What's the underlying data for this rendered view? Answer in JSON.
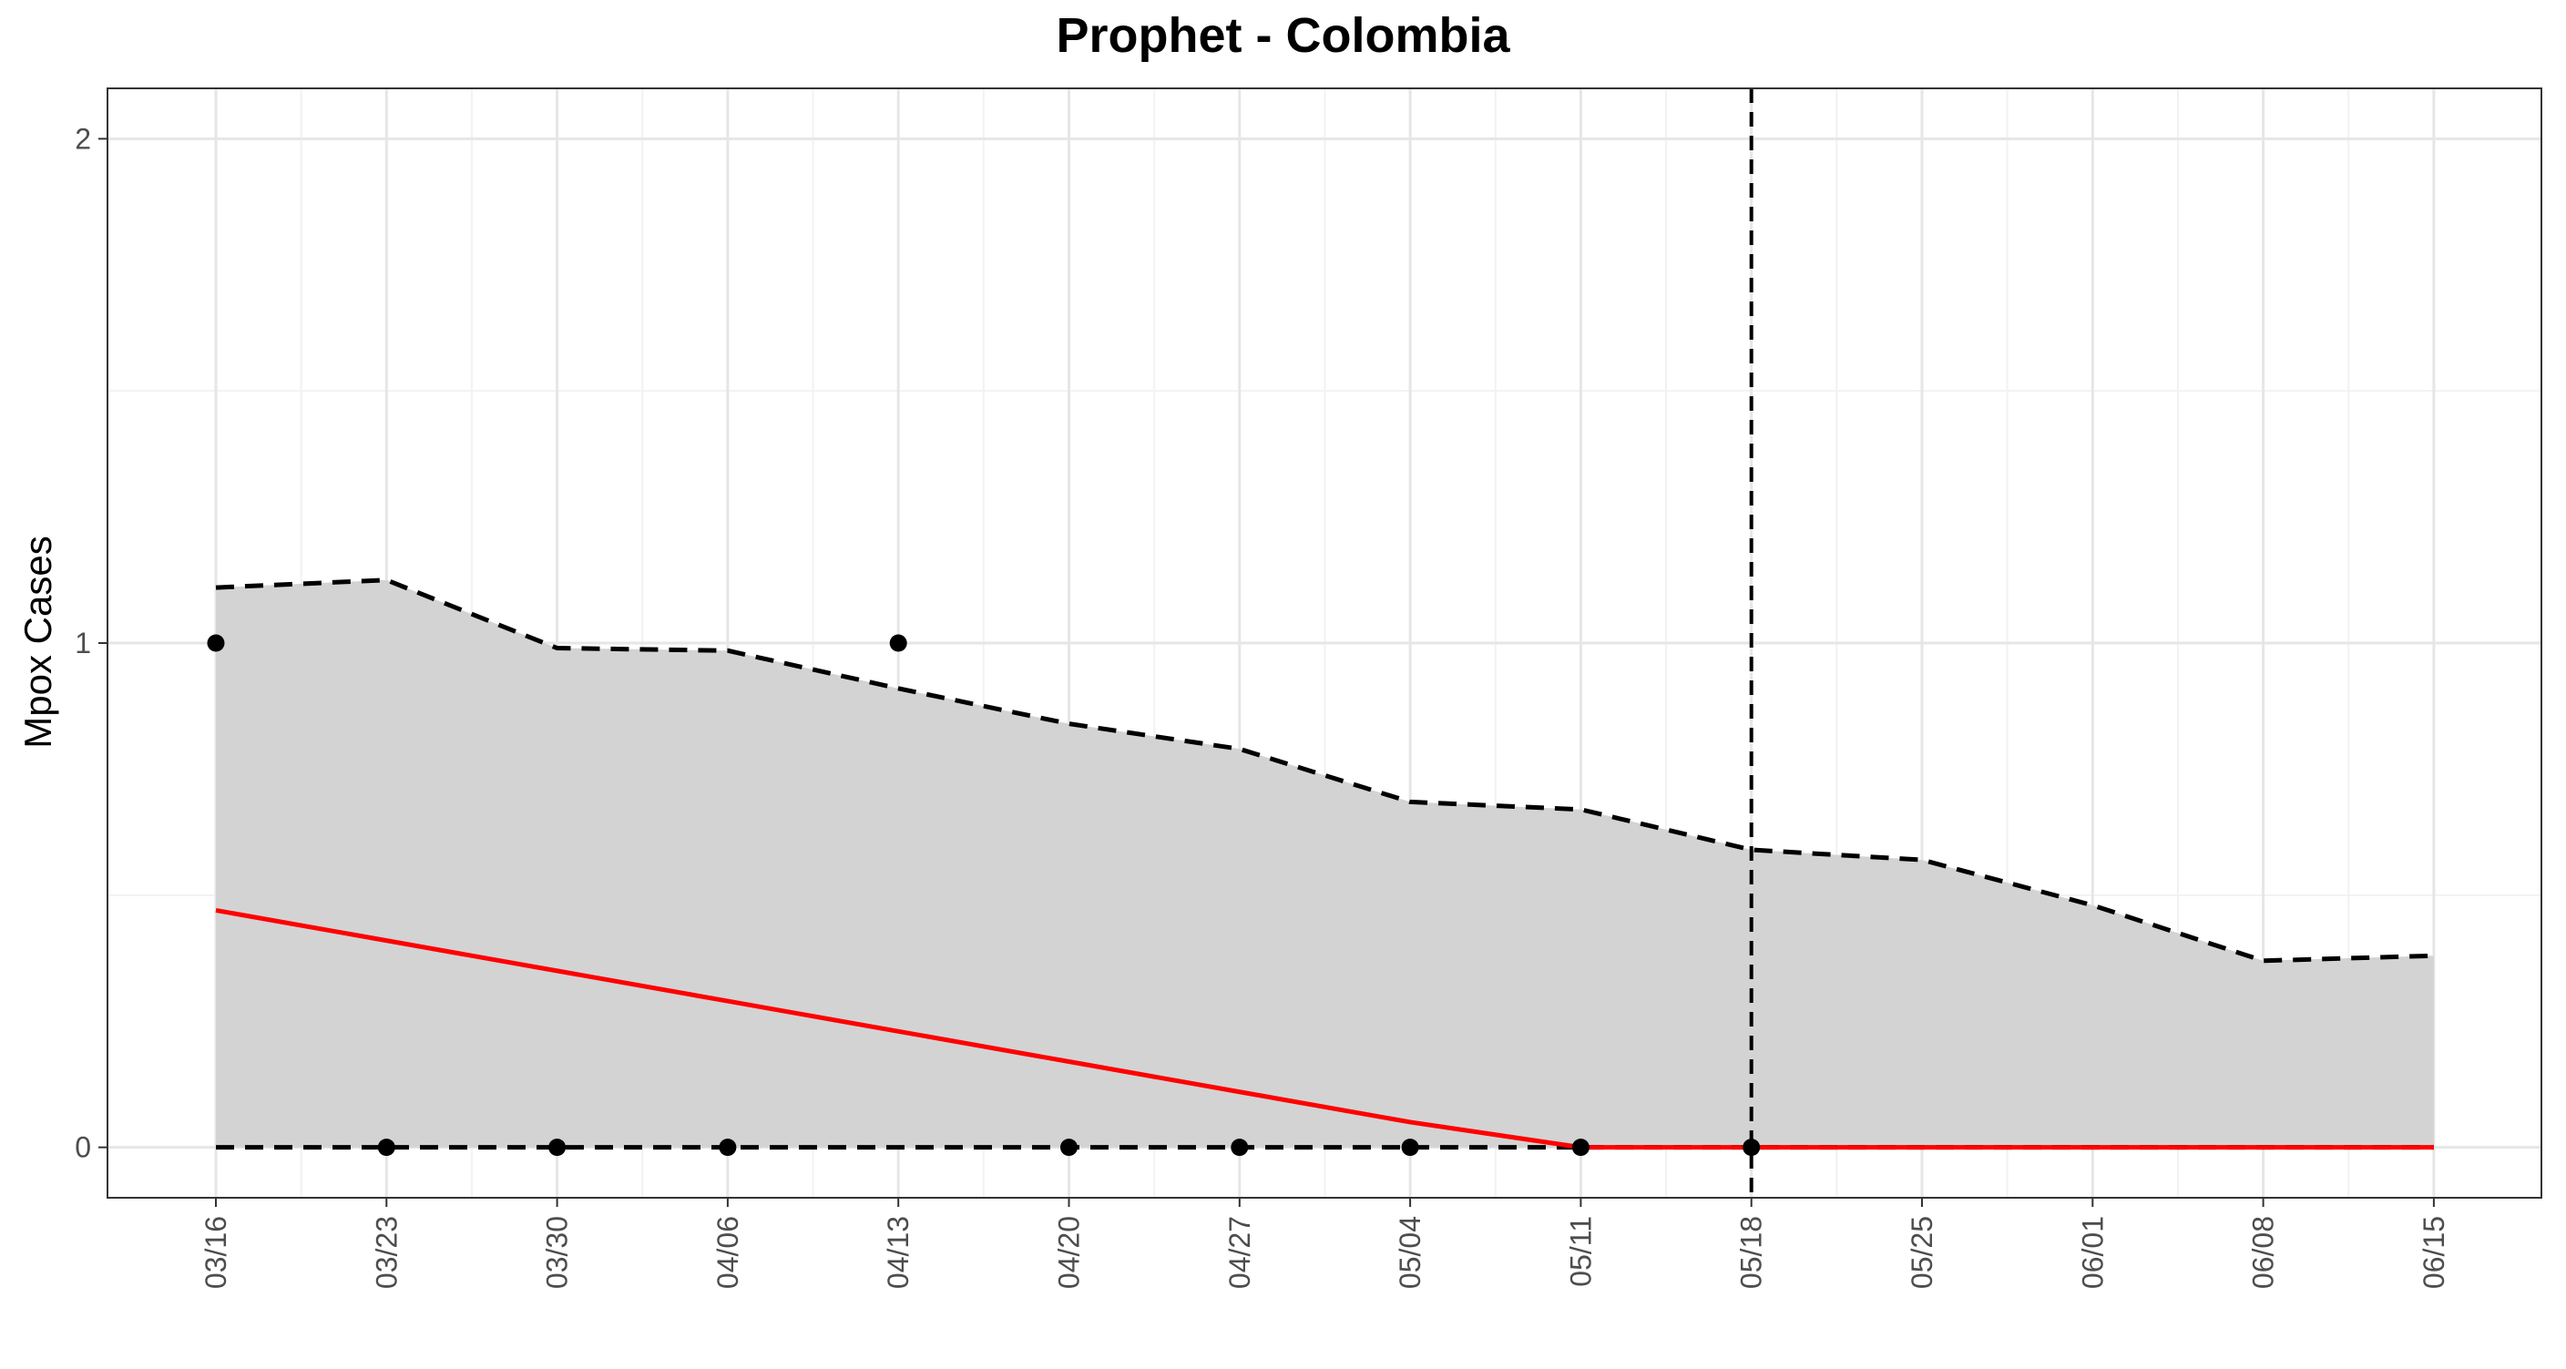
{
  "chart_data": {
    "type": "line",
    "title": "Prophet - Colombia",
    "xlabel": "",
    "ylabel": "Mpox Cases",
    "x_tick_labels": [
      "03/16",
      "03/23",
      "03/30",
      "04/06",
      "04/13",
      "04/20",
      "04/27",
      "05/04",
      "05/11",
      "05/18",
      "05/25",
      "06/01",
      "06/08",
      "06/15"
    ],
    "y_ticks": [
      0,
      1,
      2
    ],
    "ylim": [
      -0.1,
      2.1
    ],
    "grid": true,
    "vertical_line": {
      "x": "05/18",
      "style": "dashed"
    },
    "observed": {
      "x": [
        "03/16",
        "03/23",
        "03/30",
        "04/06",
        "04/13",
        "04/20",
        "04/27",
        "05/04",
        "05/11",
        "05/18"
      ],
      "y": [
        1,
        0,
        0,
        0,
        1,
        0,
        0,
        0,
        0,
        0
      ]
    },
    "forecast": {
      "x": [
        "03/16",
        "03/23",
        "03/30",
        "04/06",
        "04/13",
        "04/20",
        "04/27",
        "05/04",
        "05/11",
        "05/18",
        "05/25",
        "06/01",
        "06/08",
        "06/15"
      ],
      "y": [
        0.47,
        0.41,
        0.35,
        0.29,
        0.23,
        0.17,
        0.11,
        0.05,
        0,
        0,
        0,
        0,
        0,
        0
      ]
    },
    "upper_bound": [
      1.11,
      1.125,
      0.99,
      0.985,
      0.91,
      0.84,
      0.79,
      0.685,
      0.67,
      0.59,
      0.57,
      0.48,
      0.37,
      0.38
    ],
    "lower_bound": [
      0,
      0,
      0,
      0,
      0,
      0,
      0,
      0,
      0,
      0,
      0,
      0,
      0,
      0
    ],
    "colors": {
      "forecast_line": "#ff0000",
      "band_fill": "#d3d3d3",
      "bounds": "#000000",
      "points": "#000000",
      "grid_major": "#e6e6e6",
      "grid_minor": "#f2f2f2",
      "panel_border": "#333333"
    }
  }
}
